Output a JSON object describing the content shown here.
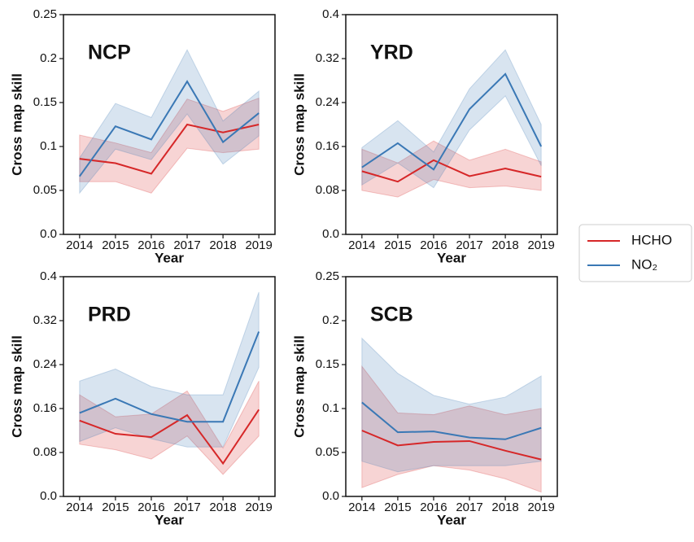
{
  "chart_data": [
    {
      "type": "line",
      "title": "NCP",
      "xlabel": "Year",
      "ylabel": "Cross map skill",
      "x": [
        2014,
        2015,
        2016,
        2017,
        2018,
        2019
      ],
      "xlim": [
        2013.55,
        2019.45
      ],
      "xticks": [
        2014,
        2015,
        2016,
        2017,
        2018,
        2019
      ],
      "ylim": [
        0,
        0.25
      ],
      "yticks": [
        {
          "value": 0,
          "label": "0.0"
        },
        0.05,
        0.1,
        0.15,
        0.2,
        0.25
      ],
      "series": [
        {
          "name": "HCHO",
          "color": "#d62728",
          "values": [
            0.086,
            0.081,
            0.069,
            0.125,
            0.116,
            0.125
          ],
          "lower": [
            0.06,
            0.06,
            0.047,
            0.098,
            0.093,
            0.097
          ],
          "upper": [
            0.113,
            0.104,
            0.093,
            0.154,
            0.14,
            0.155
          ]
        },
        {
          "name": "NO₂",
          "color": "#3a78b5",
          "values": [
            0.066,
            0.123,
            0.108,
            0.174,
            0.105,
            0.138
          ],
          "lower": [
            0.047,
            0.097,
            0.085,
            0.137,
            0.08,
            0.112
          ],
          "upper": [
            0.087,
            0.149,
            0.133,
            0.21,
            0.129,
            0.163
          ]
        }
      ]
    },
    {
      "type": "line",
      "title": "YRD",
      "xlabel": "Year",
      "ylabel": "Cross map skill",
      "x": [
        2014,
        2015,
        2016,
        2017,
        2018,
        2019
      ],
      "xlim": [
        2013.55,
        2019.45
      ],
      "xticks": [
        2014,
        2015,
        2016,
        2017,
        2018,
        2019
      ],
      "ylim": [
        0,
        0.4
      ],
      "yticks": [
        {
          "value": 0,
          "label": "0.0"
        },
        0.08,
        0.16,
        0.24,
        0.32,
        0.4
      ],
      "series": [
        {
          "name": "HCHO",
          "color": "#d62728",
          "values": [
            0.115,
            0.096,
            0.135,
            0.106,
            0.12,
            0.105
          ],
          "lower": [
            0.08,
            0.068,
            0.1,
            0.085,
            0.088,
            0.08
          ],
          "upper": [
            0.155,
            0.13,
            0.17,
            0.135,
            0.155,
            0.132
          ]
        },
        {
          "name": "NO₂",
          "color": "#3a78b5",
          "values": [
            0.122,
            0.166,
            0.118,
            0.228,
            0.292,
            0.16
          ],
          "lower": [
            0.09,
            0.13,
            0.085,
            0.19,
            0.252,
            0.125
          ],
          "upper": [
            0.158,
            0.207,
            0.15,
            0.265,
            0.336,
            0.2
          ]
        }
      ]
    },
    {
      "type": "line",
      "title": "PRD",
      "xlabel": "Year",
      "ylabel": "Cross map skill",
      "x": [
        2014,
        2015,
        2016,
        2017,
        2018,
        2019
      ],
      "xlim": [
        2013.55,
        2019.45
      ],
      "xticks": [
        2014,
        2015,
        2016,
        2017,
        2018,
        2019
      ],
      "ylim": [
        0,
        0.4
      ],
      "yticks": [
        {
          "value": 0,
          "label": "0.0"
        },
        0.08,
        0.16,
        0.24,
        0.32,
        0.4
      ],
      "series": [
        {
          "name": "HCHO",
          "color": "#d62728",
          "values": [
            0.138,
            0.114,
            0.108,
            0.148,
            0.06,
            0.158
          ],
          "lower": [
            0.095,
            0.085,
            0.068,
            0.11,
            0.04,
            0.11
          ],
          "upper": [
            0.185,
            0.145,
            0.15,
            0.192,
            0.088,
            0.21
          ]
        },
        {
          "name": "NO₂",
          "color": "#3a78b5",
          "values": [
            0.152,
            0.178,
            0.15,
            0.136,
            0.136,
            0.3
          ],
          "lower": [
            0.1,
            0.125,
            0.105,
            0.09,
            0.09,
            0.235
          ],
          "upper": [
            0.21,
            0.232,
            0.2,
            0.185,
            0.185,
            0.372
          ]
        }
      ]
    },
    {
      "type": "line",
      "title": "SCB",
      "xlabel": "Year",
      "ylabel": "Cross map skill",
      "x": [
        2014,
        2015,
        2016,
        2017,
        2018,
        2019
      ],
      "xlim": [
        2013.55,
        2019.45
      ],
      "xticks": [
        2014,
        2015,
        2016,
        2017,
        2018,
        2019
      ],
      "ylim": [
        0,
        0.25
      ],
      "yticks": [
        {
          "value": 0,
          "label": "0.0"
        },
        0.05,
        0.1,
        0.15,
        0.2,
        0.25
      ],
      "series": [
        {
          "name": "HCHO",
          "color": "#d62728",
          "values": [
            0.075,
            0.058,
            0.062,
            0.063,
            0.052,
            0.042
          ],
          "lower": [
            0.01,
            0.025,
            0.035,
            0.03,
            0.02,
            0.005
          ],
          "upper": [
            0.148,
            0.095,
            0.093,
            0.103,
            0.093,
            0.1
          ]
        },
        {
          "name": "NO₂",
          "color": "#3a78b5",
          "values": [
            0.107,
            0.073,
            0.074,
            0.067,
            0.065,
            0.078
          ],
          "lower": [
            0.04,
            0.028,
            0.035,
            0.035,
            0.035,
            0.04
          ],
          "upper": [
            0.18,
            0.14,
            0.115,
            0.105,
            0.113,
            0.137
          ]
        }
      ]
    }
  ]
}
